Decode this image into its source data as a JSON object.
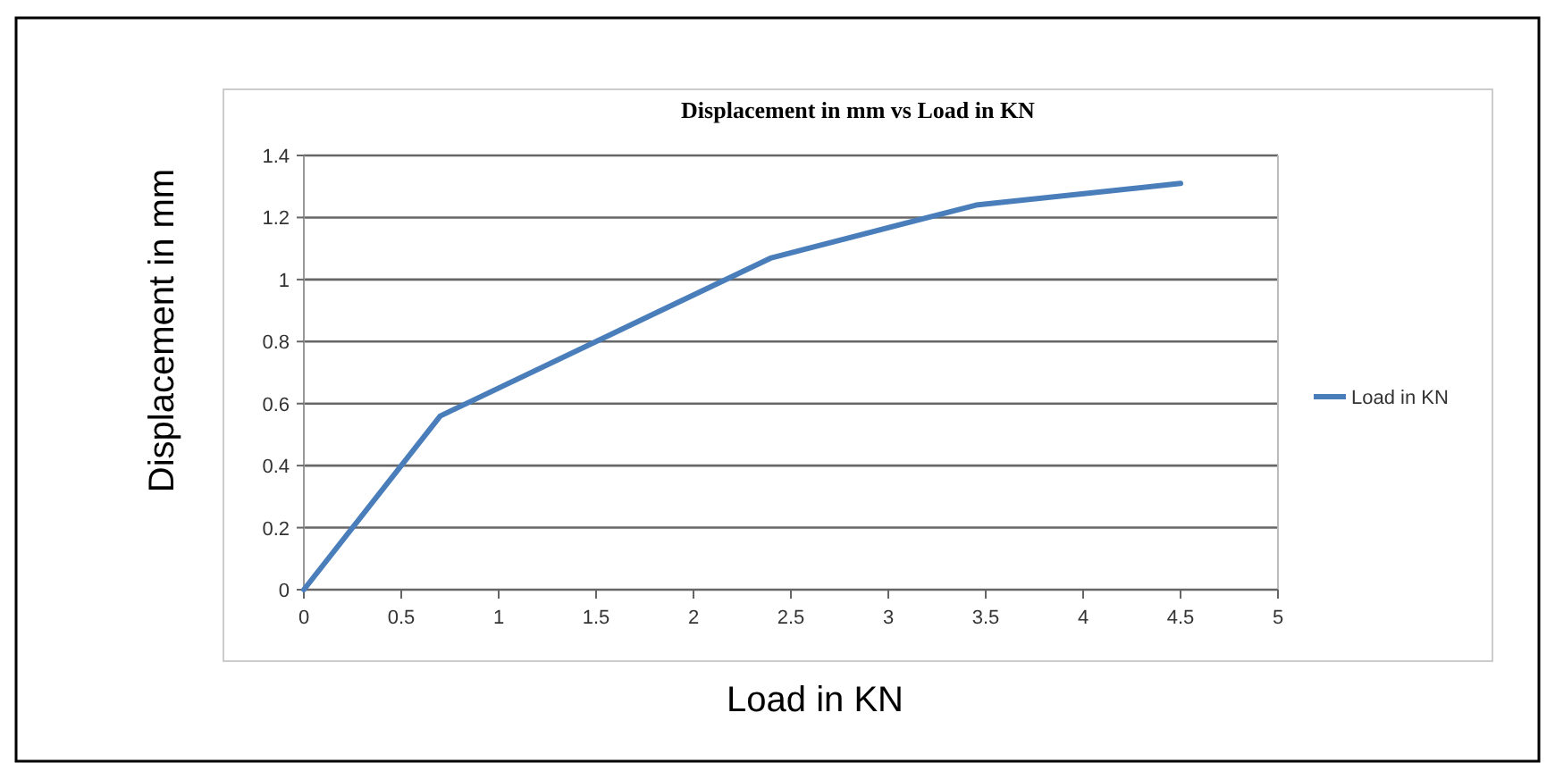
{
  "chart_data": {
    "type": "line",
    "title": "Displacement in mm vs Load in KN",
    "xlabel": "Load in KN",
    "ylabel": "Displacement in mm",
    "x": [
      0,
      0.7,
      2.4,
      3.45,
      4.5
    ],
    "series": [
      {
        "name": "Load in KN",
        "color": "#4a7ebb",
        "values": [
          0,
          0.56,
          1.07,
          1.24,
          1.31
        ]
      }
    ],
    "xlim": [
      0,
      5
    ],
    "xticks": [
      0,
      0.5,
      1,
      1.5,
      2,
      2.5,
      3,
      3.5,
      4,
      4.5,
      5
    ],
    "ylim": [
      0,
      1.4
    ],
    "yticks": [
      0,
      0.2,
      0.4,
      0.6,
      0.8,
      1,
      1.2,
      1.4
    ],
    "grid": "y",
    "legend": "right",
    "marker": "none",
    "line_style": "solid"
  }
}
